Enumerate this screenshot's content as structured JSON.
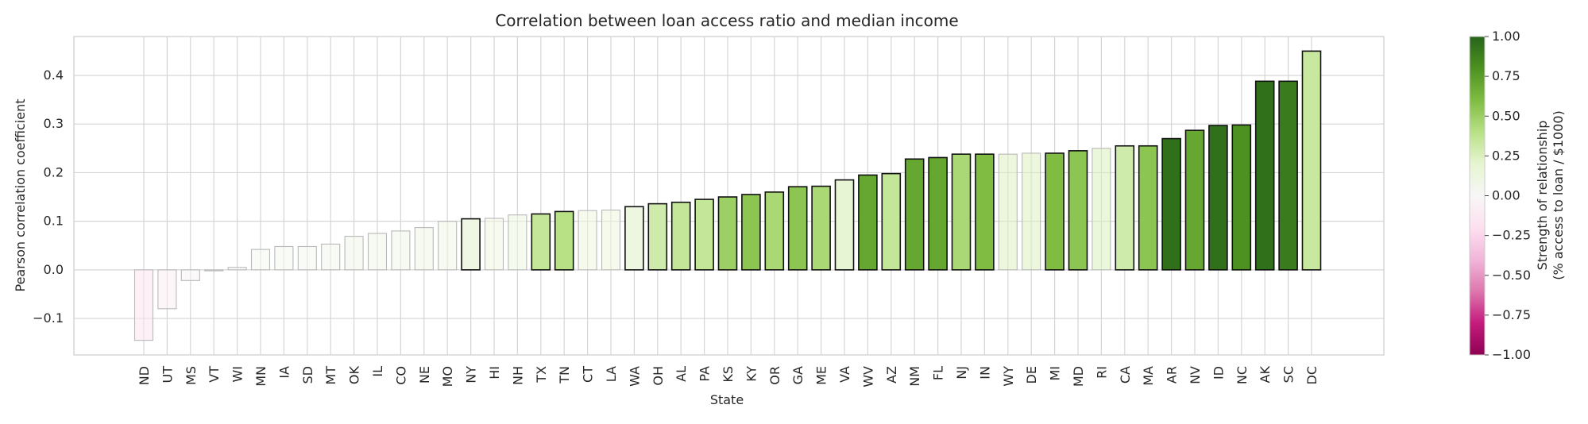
{
  "chart_data": {
    "type": "bar",
    "title": "Correlation between loan access ratio and median income",
    "xlabel": "State",
    "ylabel": "Pearson correlation coefficient",
    "ylim": [
      -0.175,
      0.48
    ],
    "yticks": [
      -0.1,
      0.0,
      0.1,
      0.2,
      0.3,
      0.4
    ],
    "ytick_labels": [
      "−0.1",
      "0.0",
      "0.1",
      "0.2",
      "0.3",
      "0.4"
    ],
    "grid": true,
    "categories": [
      "ND",
      "UT",
      "MS",
      "VT",
      "WI",
      "MN",
      "IA",
      "SD",
      "MT",
      "OK",
      "IL",
      "CO",
      "NE",
      "MO",
      "NY",
      "HI",
      "NH",
      "TX",
      "TN",
      "CT",
      "LA",
      "WA",
      "OH",
      "AL",
      "PA",
      "KS",
      "KY",
      "OR",
      "GA",
      "ME",
      "VA",
      "WV",
      "AZ",
      "NM",
      "FL",
      "NJ",
      "IN",
      "WY",
      "DE",
      "MI",
      "MD",
      "RI",
      "CA",
      "MA",
      "AR",
      "NV",
      "ID",
      "NC",
      "AK",
      "SC",
      "DC"
    ],
    "values": [
      -0.145,
      -0.08,
      -0.022,
      -0.002,
      0.005,
      0.042,
      0.048,
      0.048,
      0.053,
      0.069,
      0.075,
      0.08,
      0.087,
      0.1,
      0.105,
      0.106,
      0.113,
      0.115,
      0.12,
      0.122,
      0.123,
      0.13,
      0.136,
      0.139,
      0.145,
      0.15,
      0.155,
      0.16,
      0.171,
      0.172,
      0.185,
      0.195,
      0.198,
      0.228,
      0.231,
      0.238,
      0.238,
      0.238,
      0.24,
      0.24,
      0.245,
      0.25,
      0.255,
      0.255,
      0.27,
      0.287,
      0.297,
      0.298,
      0.388,
      0.388,
      0.45
    ],
    "color_values": [
      -0.145,
      -0.08,
      -0.022,
      -0.002,
      0.005,
      0.042,
      0.048,
      0.048,
      0.053,
      0.069,
      0.075,
      0.08,
      0.087,
      0.1,
      0.1,
      0.106,
      0.113,
      0.35,
      0.4,
      0.122,
      0.123,
      0.12,
      0.3,
      0.35,
      0.35,
      0.5,
      0.55,
      0.45,
      0.55,
      0.45,
      0.18,
      0.7,
      0.35,
      0.7,
      0.7,
      0.45,
      0.6,
      0.238,
      0.24,
      0.6,
      0.55,
      0.25,
      0.3,
      0.55,
      0.95,
      0.7,
      0.95,
      0.8,
      0.95,
      0.9,
      0.33
    ],
    "significant": [
      false,
      false,
      false,
      false,
      false,
      false,
      false,
      false,
      false,
      false,
      false,
      false,
      false,
      false,
      true,
      false,
      false,
      true,
      true,
      false,
      false,
      true,
      true,
      true,
      true,
      true,
      true,
      true,
      true,
      true,
      true,
      true,
      true,
      true,
      true,
      true,
      true,
      false,
      false,
      true,
      true,
      false,
      true,
      true,
      true,
      true,
      true,
      true,
      true,
      true,
      true
    ],
    "colorbar": {
      "label_line1": "Strength of relationship",
      "label_line2": "(% access to loan / $1000)",
      "range": [
        -1.0,
        1.0
      ],
      "ticks": [
        1.0,
        0.75,
        0.5,
        0.25,
        0.0,
        -0.25,
        -0.5,
        -0.75,
        -1.0
      ],
      "tick_labels": [
        "1.00",
        "0.75",
        "0.50",
        "0.25",
        "0.00",
        "−0.25",
        "−0.50",
        "−0.75",
        "−1.00"
      ],
      "colormap": [
        "#8e0152",
        "#c51b7d",
        "#de77ae",
        "#f1b6da",
        "#fde0ef",
        "#f7f7f7",
        "#e6f5d0",
        "#b8e186",
        "#7fbc41",
        "#4d9221",
        "#276419"
      ]
    }
  }
}
